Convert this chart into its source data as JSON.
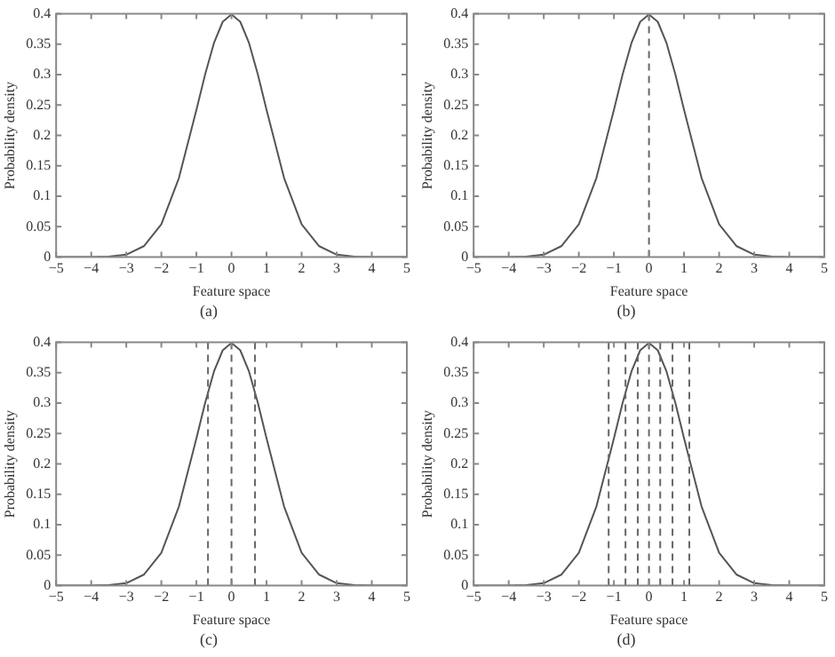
{
  "chart_data": [
    {
      "type": "line",
      "xlabel": "Feature space",
      "ylabel": "Probability density",
      "annotations": [
        "(a)"
      ],
      "xlim": [
        -5,
        5
      ],
      "ylim": [
        0,
        0.4
      ],
      "xticks": [
        {
          "value": -5,
          "label": "−5"
        },
        {
          "value": -4,
          "label": "−4"
        },
        {
          "value": -3,
          "label": "−3"
        },
        {
          "value": -2,
          "label": "−2"
        },
        {
          "value": -1,
          "label": "−1"
        },
        0,
        1,
        2,
        3,
        4,
        5
      ],
      "yticks": [
        0,
        0.05,
        0.1,
        0.15,
        0.2,
        0.25,
        0.3,
        0.35,
        0.4
      ],
      "grid": false,
      "legend": false,
      "marker": "none",
      "line_style": "solid",
      "series": [
        {
          "color": "#555555",
          "x": [
            -5,
            -4,
            -3.5,
            -3,
            -2.5,
            -2,
            -1.5,
            -1,
            -0.75,
            -0.5,
            -0.25,
            0,
            0.25,
            0.5,
            0.75,
            1,
            1.5,
            2,
            2.5,
            3,
            3.5,
            4,
            5
          ],
          "values": [
            0,
            0,
            0.001,
            0.004,
            0.018,
            0.054,
            0.13,
            0.242,
            0.301,
            0.352,
            0.387,
            0.399,
            0.387,
            0.352,
            0.301,
            0.242,
            0.13,
            0.054,
            0.018,
            0.004,
            0.001,
            0,
            0
          ]
        }
      ]
    },
    {
      "type": "line",
      "xlabel": "Feature space",
      "ylabel": "Probability density",
      "annotations": [
        "(b)"
      ],
      "xlim": [
        -5,
        5
      ],
      "ylim": [
        0,
        0.4
      ],
      "xticks": [
        {
          "value": -5,
          "label": "−5"
        },
        {
          "value": -4,
          "label": "−4"
        },
        {
          "value": -3,
          "label": "−3"
        },
        {
          "value": -2,
          "label": "−2"
        },
        {
          "value": -1,
          "label": "−1"
        },
        0,
        1,
        2,
        3,
        4,
        5
      ],
      "yticks": [
        0,
        0.05,
        0.1,
        0.15,
        0.2,
        0.25,
        0.3,
        0.35,
        0.4
      ],
      "grid": false,
      "legend": false,
      "marker": "none",
      "line_style": "solid",
      "series": [
        {
          "color": "#555555",
          "x": [
            -5,
            -4,
            -3.5,
            -3,
            -2.5,
            -2,
            -1.5,
            -1,
            -0.75,
            -0.5,
            -0.25,
            0,
            0.25,
            0.5,
            0.75,
            1,
            1.5,
            2,
            2.5,
            3,
            3.5,
            4,
            5
          ],
          "values": [
            0,
            0,
            0.001,
            0.004,
            0.018,
            0.054,
            0.13,
            0.242,
            0.301,
            0.352,
            0.387,
            0.399,
            0.387,
            0.352,
            0.301,
            0.242,
            0.13,
            0.054,
            0.018,
            0.004,
            0.001,
            0,
            0
          ]
        }
      ],
      "ref_lines": [
        {
          "axis": "x",
          "value": 0,
          "color": "#666666",
          "line_style": "dashed"
        }
      ]
    },
    {
      "type": "line",
      "xlabel": "Feature space",
      "ylabel": "Probability density",
      "annotations": [
        "(c)"
      ],
      "xlim": [
        -5,
        5
      ],
      "ylim": [
        0,
        0.4
      ],
      "xticks": [
        {
          "value": -5,
          "label": "−5"
        },
        {
          "value": -4,
          "label": "−4"
        },
        {
          "value": -3,
          "label": "−3"
        },
        {
          "value": -2,
          "label": "−2"
        },
        {
          "value": -1,
          "label": "−1"
        },
        0,
        1,
        2,
        3,
        4,
        5
      ],
      "yticks": [
        0,
        0.05,
        0.1,
        0.15,
        0.2,
        0.25,
        0.3,
        0.35,
        0.4
      ],
      "grid": false,
      "legend": false,
      "marker": "none",
      "line_style": "solid",
      "series": [
        {
          "color": "#555555",
          "x": [
            -5,
            -4,
            -3.5,
            -3,
            -2.5,
            -2,
            -1.5,
            -1,
            -0.75,
            -0.5,
            -0.25,
            0,
            0.25,
            0.5,
            0.75,
            1,
            1.5,
            2,
            2.5,
            3,
            3.5,
            4,
            5
          ],
          "values": [
            0,
            0,
            0.001,
            0.004,
            0.018,
            0.054,
            0.13,
            0.242,
            0.301,
            0.352,
            0.387,
            0.399,
            0.387,
            0.352,
            0.301,
            0.242,
            0.13,
            0.054,
            0.018,
            0.004,
            0.001,
            0,
            0
          ]
        }
      ],
      "ref_lines": [
        {
          "axis": "x",
          "value": -0.67,
          "color": "#666666",
          "line_style": "dashed"
        },
        {
          "axis": "x",
          "value": 0,
          "color": "#666666",
          "line_style": "dashed"
        },
        {
          "axis": "x",
          "value": 0.67,
          "color": "#666666",
          "line_style": "dashed"
        }
      ]
    },
    {
      "type": "line",
      "xlabel": "Feature space",
      "ylabel": "Probability density",
      "annotations": [
        "(d)"
      ],
      "xlim": [
        -5,
        5
      ],
      "ylim": [
        0,
        0.4
      ],
      "xticks": [
        {
          "value": -5,
          "label": "−5"
        },
        {
          "value": -4,
          "label": "−4"
        },
        {
          "value": -3,
          "label": "−3"
        },
        {
          "value": -2,
          "label": "−2"
        },
        {
          "value": -1,
          "label": "−1"
        },
        0,
        1,
        2,
        3,
        4,
        5
      ],
      "yticks": [
        0,
        0.05,
        0.1,
        0.15,
        0.2,
        0.25,
        0.3,
        0.35,
        0.4
      ],
      "grid": false,
      "legend": false,
      "marker": "none",
      "line_style": "solid",
      "series": [
        {
          "color": "#555555",
          "x": [
            -5,
            -4,
            -3.5,
            -3,
            -2.5,
            -2,
            -1.5,
            -1,
            -0.75,
            -0.5,
            -0.25,
            0,
            0.25,
            0.5,
            0.75,
            1,
            1.5,
            2,
            2.5,
            3,
            3.5,
            4,
            5
          ],
          "values": [
            0,
            0,
            0.001,
            0.004,
            0.018,
            0.054,
            0.13,
            0.242,
            0.301,
            0.352,
            0.387,
            0.399,
            0.387,
            0.352,
            0.301,
            0.242,
            0.13,
            0.054,
            0.018,
            0.004,
            0.001,
            0,
            0
          ]
        }
      ],
      "ref_lines": [
        {
          "axis": "x",
          "value": -1.15,
          "color": "#666666",
          "line_style": "dashed"
        },
        {
          "axis": "x",
          "value": -0.67,
          "color": "#666666",
          "line_style": "dashed"
        },
        {
          "axis": "x",
          "value": -0.32,
          "color": "#666666",
          "line_style": "dashed"
        },
        {
          "axis": "x",
          "value": 0,
          "color": "#666666",
          "line_style": "dashed"
        },
        {
          "axis": "x",
          "value": 0.32,
          "color": "#666666",
          "line_style": "dashed"
        },
        {
          "axis": "x",
          "value": 0.67,
          "color": "#666666",
          "line_style": "dashed"
        },
        {
          "axis": "x",
          "value": 1.15,
          "color": "#666666",
          "line_style": "dashed"
        }
      ]
    }
  ]
}
